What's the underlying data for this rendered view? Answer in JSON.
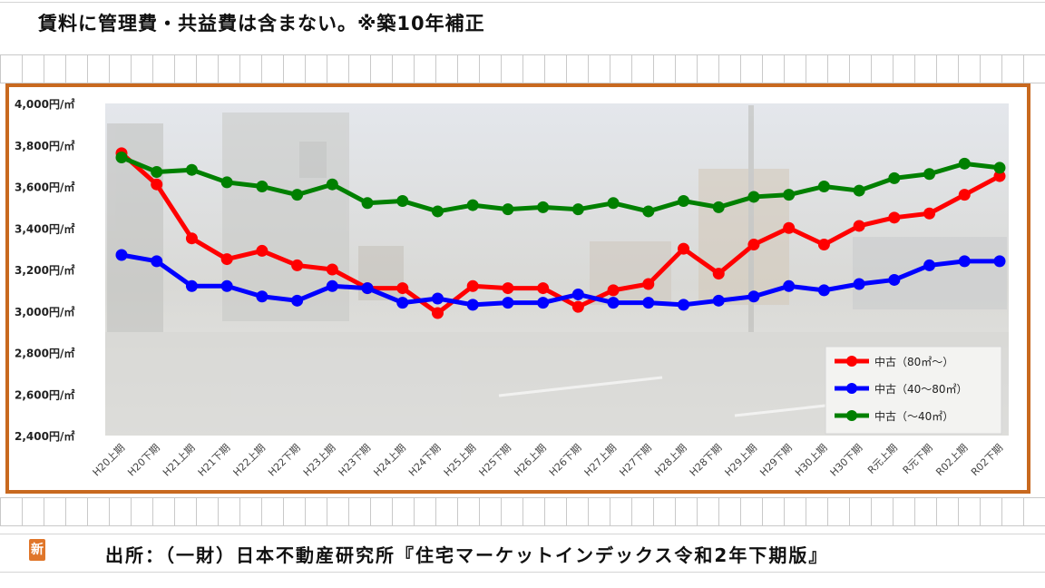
{
  "header": {
    "note": "賃料に管理費・共益費は含まない。※築10年補正"
  },
  "footer": {
    "source": "出所：（一財）日本不動産研究所『住宅マーケットインデックス令和2年下期版』"
  },
  "badge": {
    "text": "新"
  },
  "colors": {
    "frame": "#c8691f",
    "red": "#ff0000",
    "blue": "#0000ff",
    "green": "#008000"
  },
  "chart_data": {
    "type": "line",
    "ylim": [
      2400,
      4000
    ],
    "y_ticks": [
      {
        "value": 4000,
        "label": "4,000円/㎡"
      },
      {
        "value": 3800,
        "label": "3,800円/㎡"
      },
      {
        "value": 3600,
        "label": "3,600円/㎡"
      },
      {
        "value": 3400,
        "label": "3,400円/㎡"
      },
      {
        "value": 3200,
        "label": "3,200円/㎡"
      },
      {
        "value": 3000,
        "label": "3,000円/㎡"
      },
      {
        "value": 2800,
        "label": "2,800円/㎡"
      },
      {
        "value": 2600,
        "label": "2,600円/㎡"
      },
      {
        "value": 2400,
        "label": "2,400円/㎡"
      }
    ],
    "categories": [
      "H20上期",
      "H20下期",
      "H21上期",
      "H21下期",
      "H22上期",
      "H22下期",
      "H23上期",
      "H23下期",
      "H24上期",
      "H24下期",
      "H25上期",
      "H25下期",
      "H26上期",
      "H26下期",
      "H27上期",
      "H27下期",
      "H28上期",
      "H28下期",
      "H29上期",
      "H29下期",
      "H30上期",
      "H30下期",
      "R元上期",
      "R元下期",
      "R02上期",
      "R02下期"
    ],
    "legend_position": "bottom-right",
    "series": [
      {
        "name": "中古（80㎡～）",
        "color": "#ff0000",
        "values": [
          3760,
          3610,
          3350,
          3250,
          3290,
          3220,
          3200,
          3110,
          3110,
          2990,
          3120,
          3110,
          3110,
          3020,
          3100,
          3130,
          3300,
          3180,
          3320,
          3400,
          3320,
          3410,
          3450,
          3470,
          3560,
          3650
        ]
      },
      {
        "name": "中古（40～80㎡）",
        "color": "#0000ff",
        "values": [
          3270,
          3240,
          3120,
          3120,
          3070,
          3050,
          3120,
          3110,
          3040,
          3060,
          3030,
          3040,
          3040,
          3080,
          3040,
          3040,
          3030,
          3050,
          3070,
          3120,
          3100,
          3130,
          3150,
          3220,
          3240,
          3240
        ]
      },
      {
        "name": "中古（～40㎡）",
        "color": "#008000",
        "values": [
          3740,
          3670,
          3680,
          3620,
          3600,
          3560,
          3610,
          3520,
          3530,
          3480,
          3510,
          3490,
          3500,
          3490,
          3520,
          3480,
          3530,
          3500,
          3550,
          3560,
          3600,
          3580,
          3640,
          3660,
          3710,
          3690
        ]
      }
    ]
  }
}
